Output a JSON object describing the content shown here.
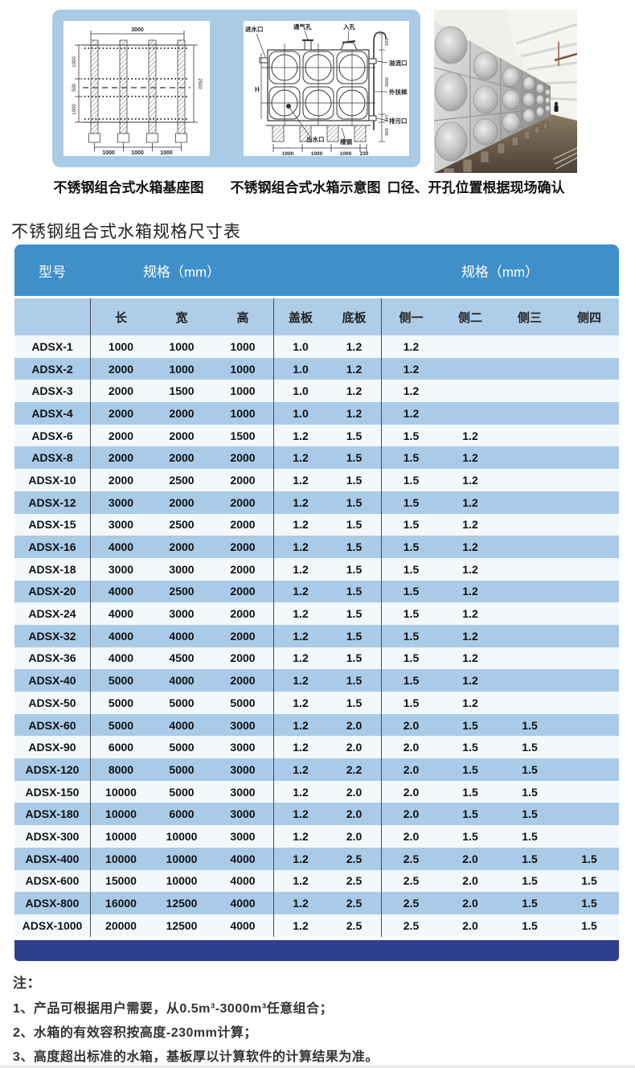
{
  "colors": {
    "header_blue": "#3f8fca",
    "subheader_blue": "#aecde9",
    "row_blue": "#a9cbe8",
    "row_light": "#f3f8fd",
    "footer_navy": "#2e3f8c",
    "banner_blue": "#a9cbe6",
    "sep": "#4a4a4a"
  },
  "banner": {
    "captions": [
      "不锈钢组合式水箱基座图",
      "不锈钢组合式水箱示意图",
      "口径、开孔位置根据现场确认"
    ]
  },
  "diagrams": {
    "base": {
      "dim_top": "3000",
      "dim_left": [
        "1000",
        "500",
        "1000"
      ],
      "dim_right": "2500",
      "dim_bottom": [
        "1000",
        "1000",
        "1000"
      ]
    },
    "schematic": {
      "labels": {
        "inlet": "进水口",
        "vent": "通气孔",
        "manhole": "入孔",
        "overflow": "溢流口",
        "ladder": "外扶梯",
        "drain": "排污口",
        "outlet": "出水口",
        "channel": "槽钢",
        "height": "H"
      },
      "dim_bottom": [
        "1000",
        "1000",
        "1000",
        "230"
      ],
      "dim_right": [
        "650",
        "2000",
        "140",
        "600"
      ]
    }
  },
  "section_title": "不锈钢组合式水箱规格尺寸表",
  "table": {
    "header": {
      "model": "型号",
      "spec_left": "规格（mm）",
      "spec_right": "规格（mm）"
    },
    "subheader": [
      "长",
      "宽",
      "高",
      "盖板",
      "底板",
      "侧一",
      "侧二",
      "侧三",
      "侧四"
    ],
    "rows": [
      [
        "ADSX-1",
        "1000",
        "1000",
        "1000",
        "1.0",
        "1.2",
        "1.2",
        "",
        "",
        ""
      ],
      [
        "ADSX-2",
        "2000",
        "1000",
        "1000",
        "1.0",
        "1.2",
        "1.2",
        "",
        "",
        ""
      ],
      [
        "ADSX-3",
        "2000",
        "1500",
        "1000",
        "1.0",
        "1.2",
        "1.2",
        "",
        "",
        ""
      ],
      [
        "ADSX-4",
        "2000",
        "2000",
        "1000",
        "1.0",
        "1.2",
        "1.2",
        "",
        "",
        ""
      ],
      [
        "ADSX-6",
        "2000",
        "2000",
        "1500",
        "1.2",
        "1.5",
        "1.5",
        "1.2",
        "",
        ""
      ],
      [
        "ADSX-8",
        "2000",
        "2000",
        "2000",
        "1.2",
        "1.5",
        "1.5",
        "1.2",
        "",
        ""
      ],
      [
        "ADSX-10",
        "2000",
        "2500",
        "2000",
        "1.2",
        "1.5",
        "1.5",
        "1.2",
        "",
        ""
      ],
      [
        "ADSX-12",
        "3000",
        "2000",
        "2000",
        "1.2",
        "1.5",
        "1.5",
        "1.2",
        "",
        ""
      ],
      [
        "ADSX-15",
        "3000",
        "2500",
        "2000",
        "1.2",
        "1.5",
        "1.5",
        "1.2",
        "",
        ""
      ],
      [
        "ADSX-16",
        "4000",
        "2000",
        "2000",
        "1.2",
        "1.5",
        "1.5",
        "1.2",
        "",
        ""
      ],
      [
        "ADSX-18",
        "3000",
        "3000",
        "2000",
        "1.2",
        "1.5",
        "1.5",
        "1.2",
        "",
        ""
      ],
      [
        "ADSX-20",
        "4000",
        "2500",
        "2000",
        "1.2",
        "1.5",
        "1.5",
        "1.2",
        "",
        ""
      ],
      [
        "ADSX-24",
        "4000",
        "3000",
        "2000",
        "1.2",
        "1.5",
        "1.5",
        "1.2",
        "",
        ""
      ],
      [
        "ADSX-32",
        "4000",
        "4000",
        "2000",
        "1.2",
        "1.5",
        "1.5",
        "1.2",
        "",
        ""
      ],
      [
        "ADSX-36",
        "4000",
        "4500",
        "2000",
        "1.2",
        "1.5",
        "1.5",
        "1.2",
        "",
        ""
      ],
      [
        "ADSX-40",
        "5000",
        "4000",
        "2000",
        "1.2",
        "1.5",
        "1.5",
        "1.2",
        "",
        ""
      ],
      [
        "ADSX-50",
        "5000",
        "5000",
        "5000",
        "1.2",
        "1.5",
        "1.5",
        "1.2",
        "",
        ""
      ],
      [
        "ADSX-60",
        "5000",
        "4000",
        "3000",
        "1.2",
        "2.0",
        "2.0",
        "1.5",
        "1.5",
        ""
      ],
      [
        "ADSX-90",
        "6000",
        "5000",
        "3000",
        "1.2",
        "2.0",
        "2.0",
        "1.5",
        "1.5",
        ""
      ],
      [
        "ADSX-120",
        "8000",
        "5000",
        "3000",
        "1.2",
        "2.2",
        "2.0",
        "1.5",
        "1.5",
        ""
      ],
      [
        "ADSX-150",
        "10000",
        "5000",
        "3000",
        "1.2",
        "2.0",
        "2.0",
        "1.5",
        "1.5",
        ""
      ],
      [
        "ADSX-180",
        "10000",
        "6000",
        "3000",
        "1.2",
        "2.0",
        "2.0",
        "1.5",
        "1.5",
        ""
      ],
      [
        "ADSX-300",
        "10000",
        "10000",
        "3000",
        "1.2",
        "2.0",
        "2.0",
        "1.5",
        "1.5",
        ""
      ],
      [
        "ADSX-400",
        "10000",
        "10000",
        "4000",
        "1.2",
        "2.5",
        "2.5",
        "2.0",
        "1.5",
        "1.5"
      ],
      [
        "ADSX-600",
        "15000",
        "10000",
        "4000",
        "1.2",
        "2.5",
        "2.5",
        "2.0",
        "1.5",
        "1.5"
      ],
      [
        "ADSX-800",
        "16000",
        "12500",
        "4000",
        "1.2",
        "2.5",
        "2.5",
        "2.0",
        "1.5",
        "1.5"
      ],
      [
        "ADSX-1000",
        "20000",
        "12500",
        "4000",
        "1.2",
        "2.5",
        "2.5",
        "2.0",
        "1.5",
        "1.5"
      ]
    ]
  },
  "notes": {
    "label": "注：",
    "items": [
      "1、产品可根据用户需要，从0.5m³-3000m³任意组合；",
      "2、水箱的有效容积按高度-230mm计算；",
      "3、高度超出标准的水箱，基板厚以计算软件的计算结果为准。"
    ]
  }
}
